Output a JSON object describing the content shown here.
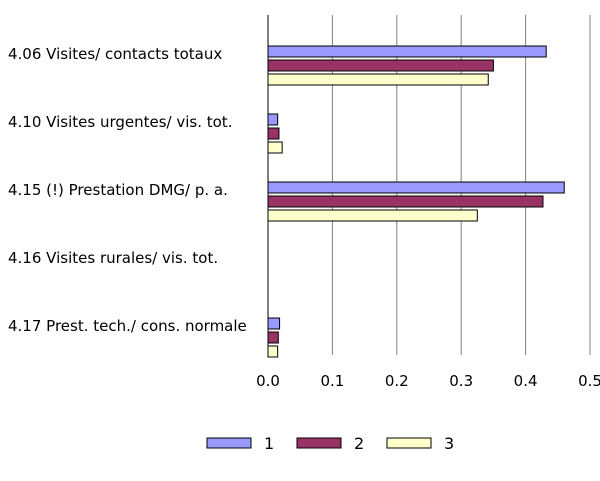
{
  "chart_data": {
    "type": "bar",
    "orientation": "horizontal",
    "categories": [
      "4.06 Visites/ contacts totaux",
      "4.10 Visites urgentes/ vis. tot.",
      "4.15 (!) Prestation DMG/ p. a.",
      "4.16 Visites rurales/ vis. tot.",
      "4.17 Prest. tech./ cons. normale"
    ],
    "series": [
      {
        "name": "1",
        "color": "#9999ff",
        "values": [
          0.432,
          0.015,
          0.46,
          0.0,
          0.018
        ]
      },
      {
        "name": "2",
        "color": "#993366",
        "values": [
          0.35,
          0.017,
          0.427,
          0.0,
          0.016
        ]
      },
      {
        "name": "3",
        "color": "#ffffcc",
        "values": [
          0.342,
          0.022,
          0.325,
          0.0,
          0.015
        ]
      }
    ],
    "xlim": [
      0,
      0.5
    ],
    "xticks": [
      "0.0",
      "0.1",
      "0.2",
      "0.3",
      "0.4",
      "0.5"
    ],
    "grid": "vertical",
    "legend_position": "bottom",
    "title": "",
    "xlabel": "",
    "ylabel": ""
  }
}
